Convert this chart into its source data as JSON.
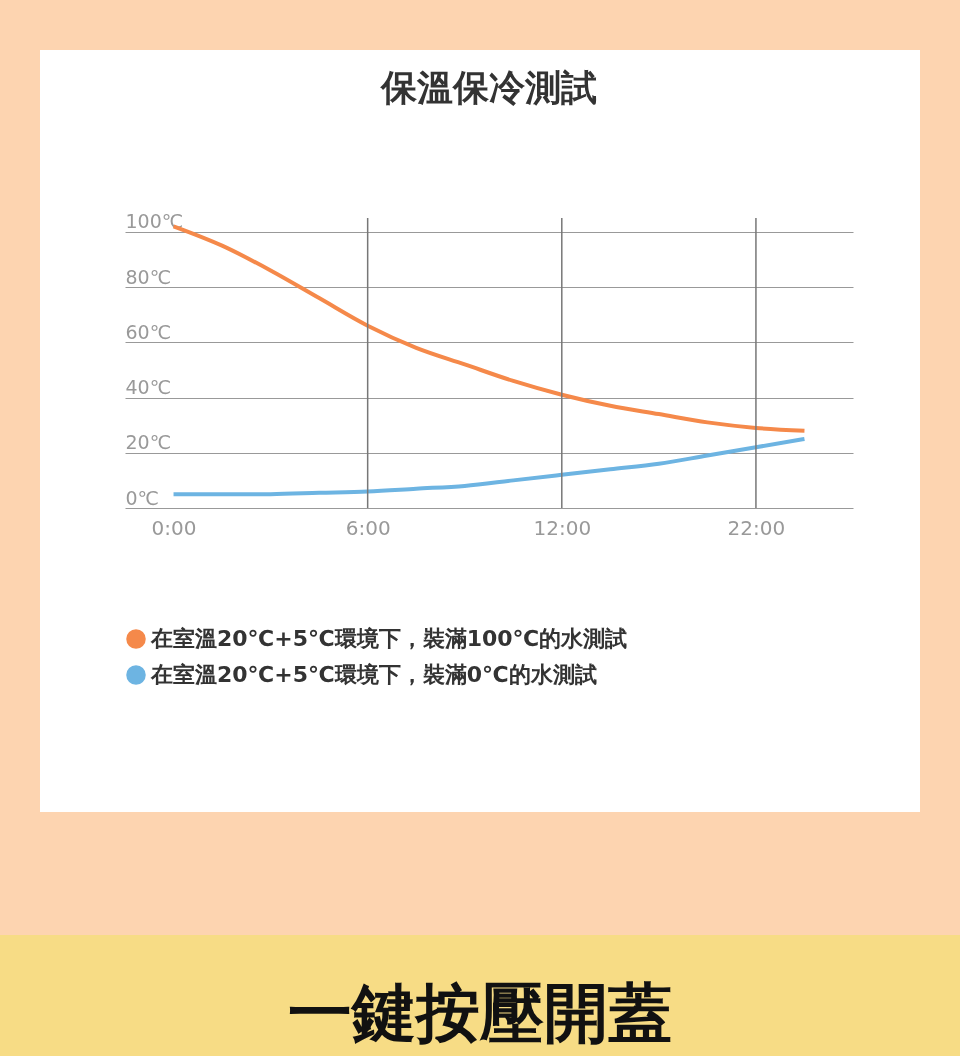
{
  "chart_data": {
    "type": "line",
    "title": "保溫保冷測試",
    "categories": [
      "0:00",
      null,
      null,
      null,
      "6:00",
      null,
      null,
      null,
      "12:00",
      null,
      null,
      null,
      "22:00",
      null
    ],
    "series": [
      {
        "name": "在室溫20℃+5℃環境下，裝滿100℃的水測試",
        "color": "#f5894a",
        "values": [
          102,
          95,
          86,
          76,
          66,
          58,
          52,
          46,
          41,
          37,
          34,
          31,
          29,
          28
        ]
      },
      {
        "name": "在室溫20℃+5℃環境下，裝滿0℃的水測試",
        "color": "#6db4e2",
        "values": [
          5,
          5,
          5,
          5.5,
          6,
          7,
          8,
          10,
          12,
          14,
          16,
          19,
          22,
          25
        ]
      }
    ],
    "ylim": [
      0,
      105
    ],
    "yticks": [
      {
        "value": 0,
        "label": "0℃"
      },
      {
        "value": 20,
        "label": "20℃"
      },
      {
        "value": 40,
        "label": "40℃"
      },
      {
        "value": 60,
        "label": "60℃"
      },
      {
        "value": 80,
        "label": "80℃"
      },
      {
        "value": 100,
        "label": "100℃"
      }
    ],
    "ref_lines": [
      {
        "axis": "x",
        "value": "6:00",
        "label": null,
        "color": "#777777"
      },
      {
        "axis": "x",
        "value": "12:00",
        "label": null,
        "color": "#777777"
      },
      {
        "axis": "x",
        "value": "22:00",
        "label": null,
        "color": "#777777"
      }
    ],
    "grid": "y",
    "legend": "bottom",
    "marker": "none",
    "line_style": "solid",
    "annotations": [
      "一鍵按壓開蓋"
    ]
  }
}
